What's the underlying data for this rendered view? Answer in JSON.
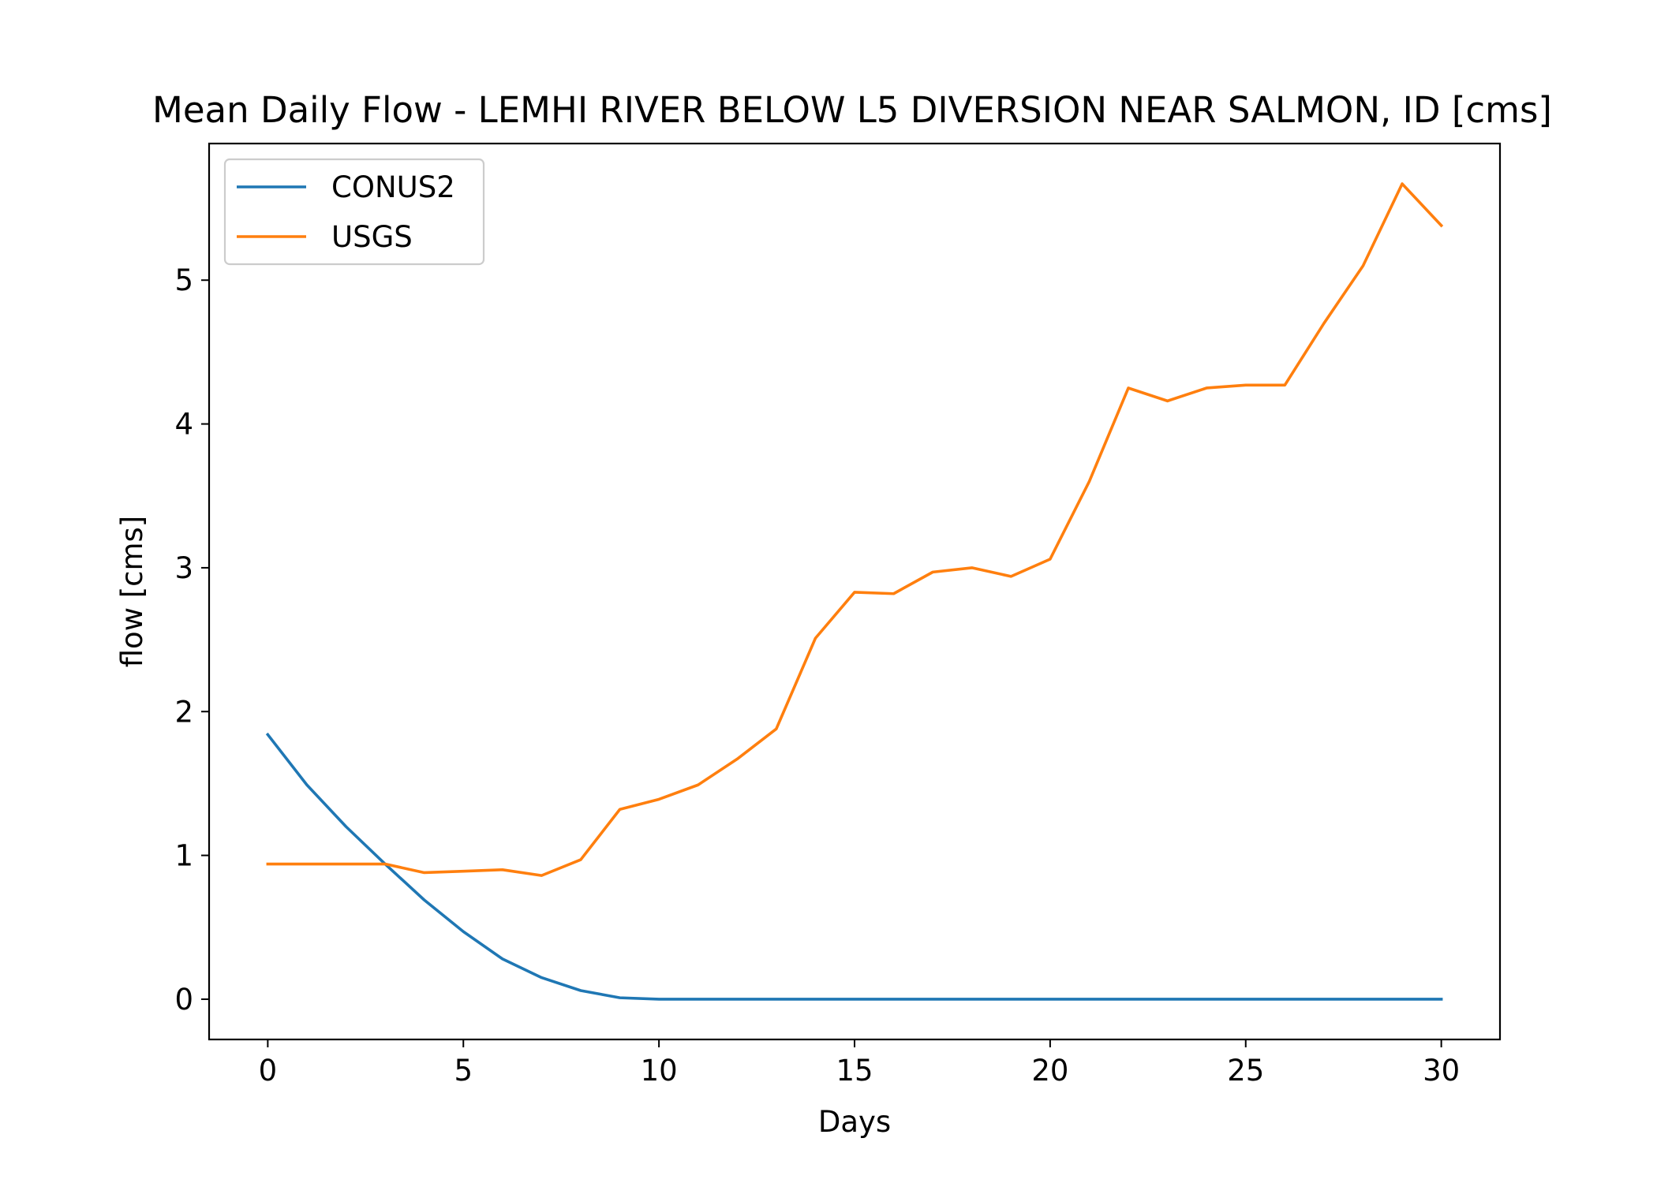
{
  "chart_data": {
    "type": "line",
    "title": "Mean Daily Flow - LEMHI RIVER BELOW L5 DIVERSION NEAR SALMON, ID [cms]",
    "xlabel": "Days",
    "ylabel": "flow [cms]",
    "xlim": [
      -1.5,
      31.5
    ],
    "ylim": [
      -0.28,
      5.95
    ],
    "xticks": [
      0,
      5,
      10,
      15,
      20,
      25,
      30
    ],
    "yticks": [
      0,
      1,
      2,
      3,
      4,
      5
    ],
    "grid": false,
    "legend_position": "top-left",
    "x": [
      0,
      1,
      2,
      3,
      4,
      5,
      6,
      7,
      8,
      9,
      10,
      11,
      12,
      13,
      14,
      15,
      16,
      17,
      18,
      19,
      20,
      21,
      22,
      23,
      24,
      25,
      26,
      27,
      28,
      29,
      30
    ],
    "series": [
      {
        "name": "CONUS2",
        "color": "#1f77b4",
        "values": [
          1.84,
          1.49,
          1.2,
          0.94,
          0.69,
          0.47,
          0.28,
          0.15,
          0.06,
          0.01,
          0.0,
          0.0,
          0.0,
          0.0,
          0.0,
          0.0,
          0.0,
          0.0,
          0.0,
          0.0,
          0.0,
          0.0,
          0.0,
          0.0,
          0.0,
          0.0,
          0.0,
          0.0,
          0.0,
          0.0,
          0.0
        ]
      },
      {
        "name": "USGS",
        "color": "#ff7f0e",
        "values": [
          0.94,
          0.94,
          0.94,
          0.94,
          0.88,
          0.89,
          0.9,
          0.86,
          0.97,
          1.32,
          1.39,
          1.49,
          1.67,
          1.88,
          2.51,
          2.83,
          2.82,
          2.97,
          3.0,
          2.94,
          3.06,
          3.6,
          4.25,
          4.16,
          4.25,
          4.27,
          4.27,
          4.7,
          5.1,
          5.67,
          5.38
        ]
      }
    ]
  }
}
